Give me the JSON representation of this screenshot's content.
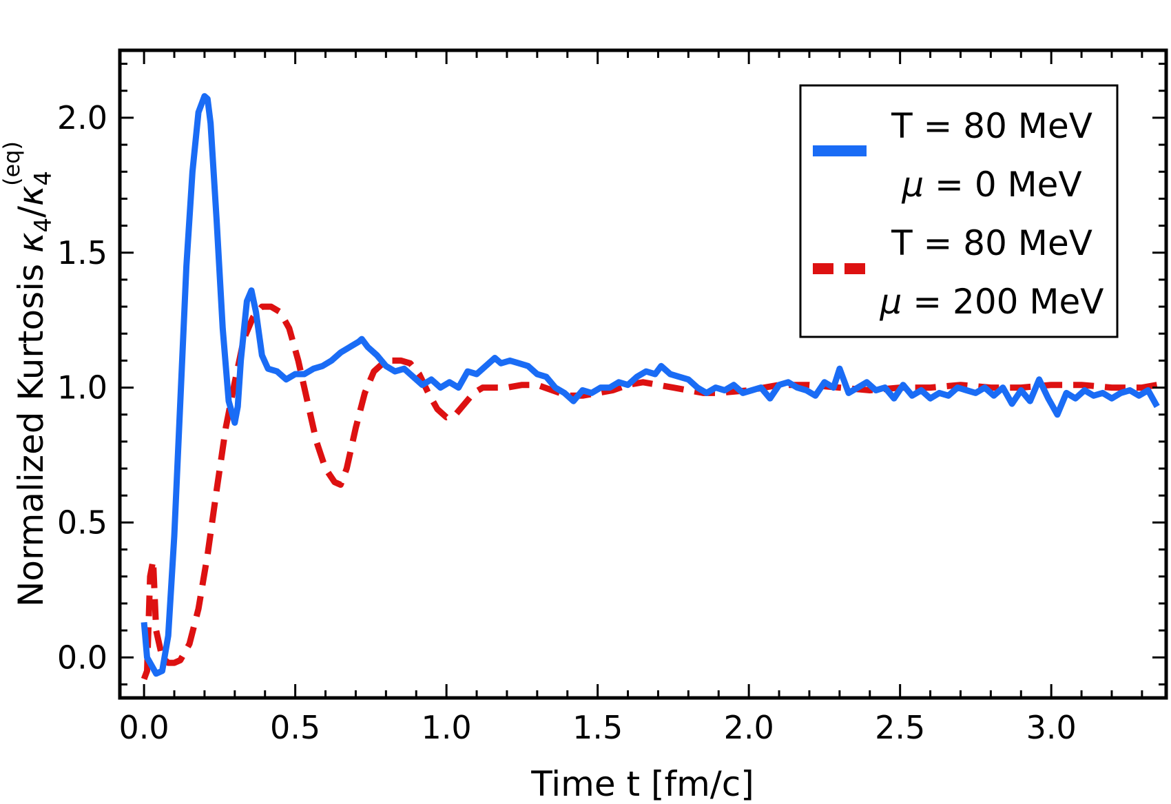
{
  "chart_data": {
    "type": "line",
    "xlabel": "Time t [fm/c]",
    "ylabel": {
      "prefix": "Normalized  Kurtosis ",
      "symbol": "κ",
      "sub1": "4",
      "slash": "/",
      "sub2": "4",
      "sup2": "(eq)"
    },
    "xlim": [
      -0.08,
      3.38
    ],
    "ylim": [
      -0.15,
      2.25
    ],
    "x_ticks": [
      0.0,
      0.5,
      1.0,
      1.5,
      2.0,
      2.5,
      3.0
    ],
    "x_tick_labels": [
      "0.0",
      "0.5",
      "1.0",
      "1.5",
      "2.0",
      "2.5",
      "3.0"
    ],
    "y_ticks": [
      0.0,
      0.5,
      1.0,
      1.5,
      2.0
    ],
    "y_tick_labels": [
      "0.0",
      "0.5",
      "1.0",
      "1.5",
      "2.0"
    ],
    "grid": false,
    "legend_position": "top-right",
    "series": [
      {
        "legend_line1": "T = 80 MeV",
        "legend_line2_mu": "μ",
        "legend_line2_rest": " = 0 MeV",
        "color": "#1a6cf5",
        "style": "solid",
        "x": [
          0.0,
          0.01,
          0.02,
          0.04,
          0.06,
          0.08,
          0.1,
          0.12,
          0.14,
          0.16,
          0.18,
          0.2,
          0.21,
          0.22,
          0.24,
          0.26,
          0.28,
          0.3,
          0.31,
          0.32,
          0.34,
          0.355,
          0.37,
          0.39,
          0.41,
          0.44,
          0.47,
          0.5,
          0.53,
          0.56,
          0.59,
          0.62,
          0.65,
          0.68,
          0.71,
          0.72,
          0.74,
          0.77,
          0.8,
          0.83,
          0.86,
          0.89,
          0.92,
          0.95,
          0.98,
          1.01,
          1.04,
          1.07,
          1.1,
          1.13,
          1.16,
          1.18,
          1.21,
          1.24,
          1.27,
          1.3,
          1.33,
          1.36,
          1.39,
          1.42,
          1.45,
          1.48,
          1.51,
          1.54,
          1.57,
          1.6,
          1.63,
          1.66,
          1.69,
          1.71,
          1.74,
          1.77,
          1.8,
          1.83,
          1.86,
          1.89,
          1.92,
          1.95,
          1.98,
          2.01,
          2.04,
          2.07,
          2.1,
          2.13,
          2.16,
          2.19,
          2.22,
          2.25,
          2.28,
          2.3,
          2.33,
          2.36,
          2.39,
          2.42,
          2.45,
          2.48,
          2.51,
          2.54,
          2.57,
          2.6,
          2.63,
          2.66,
          2.69,
          2.72,
          2.75,
          2.78,
          2.81,
          2.84,
          2.87,
          2.9,
          2.93,
          2.96,
          2.99,
          3.02,
          3.05,
          3.08,
          3.11,
          3.14,
          3.17,
          3.2,
          3.23,
          3.26,
          3.29,
          3.32,
          3.35
        ],
        "y": [
          0.13,
          0.0,
          -0.02,
          -0.06,
          -0.05,
          0.08,
          0.45,
          0.95,
          1.45,
          1.8,
          2.02,
          2.08,
          2.07,
          1.98,
          1.62,
          1.22,
          0.95,
          0.87,
          0.93,
          1.1,
          1.32,
          1.36,
          1.28,
          1.12,
          1.07,
          1.06,
          1.03,
          1.05,
          1.05,
          1.07,
          1.08,
          1.1,
          1.13,
          1.15,
          1.17,
          1.18,
          1.15,
          1.12,
          1.08,
          1.06,
          1.07,
          1.04,
          1.01,
          1.03,
          1.0,
          1.02,
          1.0,
          1.06,
          1.05,
          1.08,
          1.11,
          1.09,
          1.1,
          1.09,
          1.08,
          1.05,
          1.04,
          1.0,
          0.98,
          0.95,
          0.99,
          0.98,
          1.0,
          1.0,
          1.02,
          1.01,
          1.04,
          1.06,
          1.05,
          1.08,
          1.05,
          1.04,
          1.03,
          1.0,
          0.98,
          1.0,
          0.99,
          1.01,
          0.98,
          0.99,
          1.0,
          0.96,
          1.01,
          1.02,
          1.0,
          0.99,
          0.97,
          1.02,
          1.0,
          1.07,
          0.98,
          1.0,
          1.02,
          0.99,
          1.0,
          0.96,
          1.01,
          0.97,
          0.99,
          0.96,
          0.98,
          0.97,
          1.0,
          0.99,
          0.98,
          1.0,
          0.97,
          1.0,
          0.94,
          0.99,
          0.95,
          1.03,
          0.96,
          0.9,
          0.98,
          0.96,
          0.99,
          0.97,
          0.98,
          0.96,
          0.98,
          0.99,
          0.97,
          0.99,
          0.93
        ]
      },
      {
        "legend_line1": "T = 80 MeV",
        "legend_line2_mu": "μ",
        "legend_line2_rest": " = 200 MeV",
        "color": "#dd1111",
        "style": "dashed",
        "x": [
          0.0,
          0.01,
          0.02,
          0.03,
          0.04,
          0.06,
          0.08,
          0.1,
          0.12,
          0.15,
          0.18,
          0.21,
          0.24,
          0.27,
          0.3,
          0.33,
          0.36,
          0.39,
          0.42,
          0.45,
          0.48,
          0.51,
          0.54,
          0.57,
          0.6,
          0.63,
          0.65,
          0.67,
          0.7,
          0.73,
          0.76,
          0.79,
          0.82,
          0.85,
          0.88,
          0.91,
          0.94,
          0.97,
          1.0,
          1.03,
          1.06,
          1.09,
          1.12,
          1.15,
          1.2,
          1.25,
          1.3,
          1.35,
          1.4,
          1.45,
          1.5,
          1.55,
          1.6,
          1.65,
          1.7,
          1.75,
          1.8,
          1.85,
          1.9,
          2.0,
          2.1,
          2.2,
          2.3,
          2.4,
          2.5,
          2.6,
          2.7,
          2.8,
          2.9,
          3.0,
          3.1,
          3.2,
          3.3,
          3.35
        ],
        "y": [
          -0.08,
          -0.05,
          0.3,
          0.36,
          0.1,
          0.0,
          -0.02,
          -0.02,
          -0.01,
          0.05,
          0.18,
          0.38,
          0.62,
          0.85,
          1.02,
          1.18,
          1.26,
          1.3,
          1.3,
          1.28,
          1.22,
          1.1,
          0.95,
          0.8,
          0.7,
          0.65,
          0.64,
          0.7,
          0.85,
          0.98,
          1.06,
          1.09,
          1.1,
          1.1,
          1.09,
          1.05,
          0.98,
          0.92,
          0.89,
          0.9,
          0.94,
          0.98,
          1.0,
          1.0,
          1.0,
          1.01,
          1.01,
          0.99,
          0.97,
          0.97,
          0.98,
          0.99,
          1.01,
          1.02,
          1.01,
          1.0,
          0.99,
          0.98,
          0.98,
          0.99,
          1.01,
          1.01,
          1.0,
          0.99,
          1.0,
          1.0,
          1.01,
          1.0,
          1.0,
          1.01,
          1.01,
          1.0,
          1.0,
          1.01
        ]
      }
    ]
  }
}
